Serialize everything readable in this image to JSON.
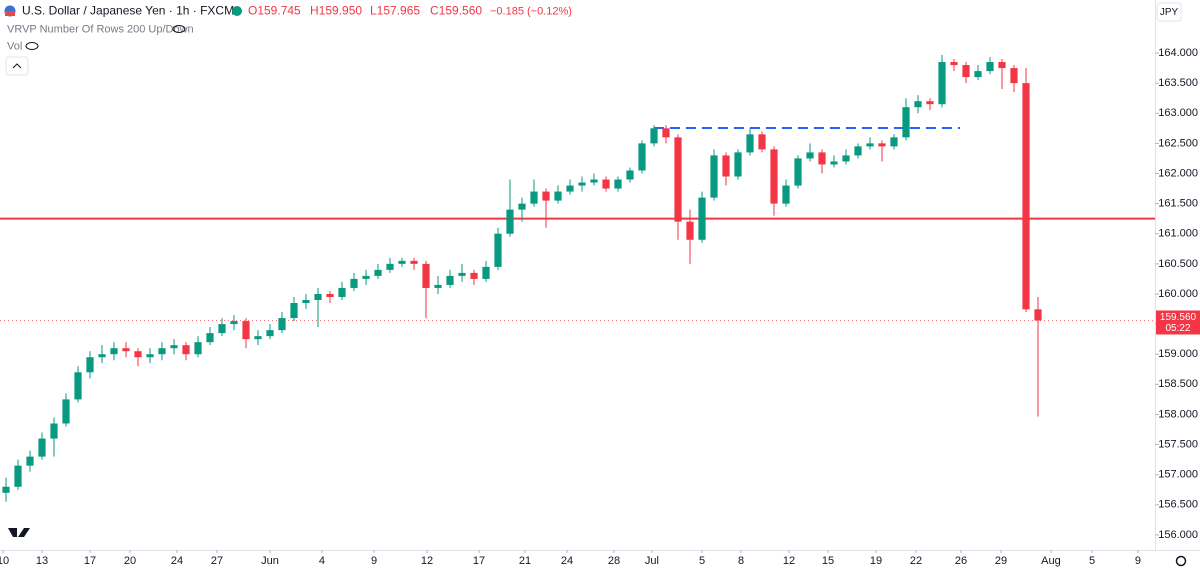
{
  "header": {
    "symbol": "U.S. Dollar / Japanese Yen · 1h · FXCM",
    "open": "O159.745",
    "high": "H159.950",
    "low": "L157.965",
    "close": "C159.560",
    "change": "−0.185 (−0.12%)",
    "indicator": "VRVP Number Of Rows 200 Up/Down",
    "volume": "Vol",
    "currency": "JPY"
  },
  "price_tag": {
    "price": "159.560",
    "countdown": "05:22"
  },
  "chart_data": {
    "type": "candlestick",
    "up_color": "#089981",
    "down_color": "#f23645",
    "candles": [
      [
        156.7,
        156.95,
        156.55,
        156.8
      ],
      [
        156.8,
        157.25,
        156.75,
        157.15
      ],
      [
        157.15,
        157.4,
        157.05,
        157.3
      ],
      [
        157.3,
        157.7,
        157.25,
        157.6
      ],
      [
        157.6,
        157.95,
        157.3,
        157.85
      ],
      [
        157.85,
        158.35,
        157.8,
        158.25
      ],
      [
        158.25,
        158.8,
        158.2,
        158.7
      ],
      [
        158.7,
        159.05,
        158.6,
        158.95
      ],
      [
        158.95,
        159.15,
        158.85,
        159.0
      ],
      [
        159.0,
        159.2,
        158.9,
        159.1
      ],
      [
        159.1,
        159.2,
        158.95,
        159.05
      ],
      [
        159.05,
        159.1,
        158.8,
        158.95
      ],
      [
        158.95,
        159.1,
        158.85,
        159.0
      ],
      [
        159.0,
        159.2,
        158.9,
        159.1
      ],
      [
        159.1,
        159.25,
        159.0,
        159.15
      ],
      [
        159.15,
        159.2,
        158.9,
        159.0
      ],
      [
        159.0,
        159.3,
        158.95,
        159.2
      ],
      [
        159.2,
        159.45,
        159.15,
        159.35
      ],
      [
        159.35,
        159.6,
        159.3,
        159.5
      ],
      [
        159.5,
        159.65,
        159.4,
        159.55
      ],
      [
        159.55,
        159.6,
        159.1,
        159.25
      ],
      [
        159.25,
        159.4,
        159.15,
        159.3
      ],
      [
        159.3,
        159.5,
        159.25,
        159.4
      ],
      [
        159.4,
        159.7,
        159.35,
        159.6
      ],
      [
        159.6,
        159.95,
        159.55,
        159.85
      ],
      [
        159.85,
        160.0,
        159.75,
        159.9
      ],
      [
        159.9,
        160.1,
        159.45,
        160.0
      ],
      [
        160.0,
        160.05,
        159.85,
        159.95
      ],
      [
        159.95,
        160.2,
        159.9,
        160.1
      ],
      [
        160.1,
        160.35,
        160.05,
        160.25
      ],
      [
        160.25,
        160.4,
        160.15,
        160.3
      ],
      [
        160.3,
        160.5,
        160.25,
        160.4
      ],
      [
        160.4,
        160.6,
        160.35,
        160.5
      ],
      [
        160.5,
        160.6,
        160.45,
        160.55
      ],
      [
        160.55,
        160.6,
        160.4,
        160.5
      ],
      [
        160.5,
        160.55,
        159.6,
        160.1
      ],
      [
        160.1,
        160.3,
        160.0,
        160.15
      ],
      [
        160.15,
        160.4,
        160.1,
        160.3
      ],
      [
        160.3,
        160.5,
        160.2,
        160.35
      ],
      [
        160.35,
        160.4,
        160.15,
        160.25
      ],
      [
        160.25,
        160.55,
        160.2,
        160.45
      ],
      [
        160.45,
        161.1,
        160.4,
        161.0
      ],
      [
        161.0,
        161.9,
        160.95,
        161.4
      ],
      [
        161.4,
        161.6,
        161.2,
        161.5
      ],
      [
        161.5,
        161.9,
        161.45,
        161.7
      ],
      [
        161.7,
        161.75,
        161.1,
        161.55
      ],
      [
        161.55,
        161.8,
        161.5,
        161.7
      ],
      [
        161.7,
        161.9,
        161.65,
        161.8
      ],
      [
        161.8,
        161.95,
        161.7,
        161.85
      ],
      [
        161.85,
        162.0,
        161.8,
        161.9
      ],
      [
        161.9,
        161.95,
        161.7,
        161.75
      ],
      [
        161.75,
        161.95,
        161.7,
        161.9
      ],
      [
        161.9,
        162.1,
        161.85,
        162.05
      ],
      [
        162.05,
        162.55,
        162.0,
        162.5
      ],
      [
        162.5,
        162.8,
        162.45,
        162.75
      ],
      [
        162.75,
        162.8,
        162.5,
        162.6
      ],
      [
        162.6,
        162.65,
        160.9,
        161.2
      ],
      [
        161.2,
        161.4,
        160.5,
        160.9
      ],
      [
        160.9,
        161.7,
        160.85,
        161.6
      ],
      [
        161.6,
        162.4,
        161.55,
        162.3
      ],
      [
        162.3,
        162.35,
        161.8,
        161.95
      ],
      [
        161.95,
        162.4,
        161.9,
        162.35
      ],
      [
        162.35,
        162.75,
        162.3,
        162.65
      ],
      [
        162.65,
        162.7,
        162.35,
        162.4
      ],
      [
        162.4,
        162.45,
        161.3,
        161.5
      ],
      [
        161.5,
        161.9,
        161.45,
        161.8
      ],
      [
        161.8,
        162.3,
        161.75,
        162.25
      ],
      [
        162.25,
        162.5,
        162.2,
        162.35
      ],
      [
        162.35,
        162.4,
        162.0,
        162.15
      ],
      [
        162.15,
        162.3,
        162.1,
        162.2
      ],
      [
        162.2,
        162.4,
        162.15,
        162.3
      ],
      [
        162.3,
        162.5,
        162.25,
        162.45
      ],
      [
        162.45,
        162.6,
        162.4,
        162.5
      ],
      [
        162.5,
        162.55,
        162.2,
        162.45
      ],
      [
        162.45,
        162.65,
        162.4,
        162.6
      ],
      [
        162.6,
        163.25,
        162.55,
        163.1
      ],
      [
        163.1,
        163.3,
        163.0,
        163.2
      ],
      [
        163.2,
        163.25,
        163.05,
        163.15
      ],
      [
        163.15,
        163.97,
        163.1,
        163.85
      ],
      [
        163.85,
        163.9,
        163.7,
        163.8
      ],
      [
        163.8,
        163.85,
        163.5,
        163.6
      ],
      [
        163.6,
        163.8,
        163.55,
        163.7
      ],
      [
        163.7,
        163.93,
        163.65,
        163.85
      ],
      [
        163.85,
        163.9,
        163.4,
        163.75
      ],
      [
        163.75,
        163.8,
        163.35,
        163.5
      ],
      [
        163.5,
        163.75,
        159.7,
        159.745
      ],
      [
        159.745,
        159.95,
        157.965,
        159.56
      ]
    ],
    "xlim": [
      -0.5,
      95.75
    ],
    "xticks": [
      {
        "value": -0.25,
        "label": "10"
      },
      {
        "value": 3.0,
        "label": "13"
      },
      {
        "value": 7.0,
        "label": "17"
      },
      {
        "value": 10.33,
        "label": "20"
      },
      {
        "value": 14.25,
        "label": "24"
      },
      {
        "value": 17.58,
        "label": "27"
      },
      {
        "value": 22.0,
        "label": "Jun"
      },
      {
        "value": 26.33,
        "label": "4"
      },
      {
        "value": 30.67,
        "label": "9"
      },
      {
        "value": 35.08,
        "label": "12"
      },
      {
        "value": 39.42,
        "label": "17"
      },
      {
        "value": 43.25,
        "label": "21"
      },
      {
        "value": 46.75,
        "label": "24"
      },
      {
        "value": 50.67,
        "label": "28"
      },
      {
        "value": 53.83,
        "label": "Jul"
      },
      {
        "value": 58.0,
        "label": "5"
      },
      {
        "value": 61.25,
        "label": "8"
      },
      {
        "value": 65.25,
        "label": "12"
      },
      {
        "value": 68.5,
        "label": "15"
      },
      {
        "value": 72.5,
        "label": "19"
      },
      {
        "value": 75.83,
        "label": "22"
      },
      {
        "value": 79.58,
        "label": "26"
      },
      {
        "value": 82.92,
        "label": "29"
      },
      {
        "value": 87.08,
        "label": "Aug"
      },
      {
        "value": 90.5,
        "label": "5"
      },
      {
        "value": 94.33,
        "label": "9"
      }
    ],
    "ylim": [
      155.75,
      164.88
    ],
    "yticks": [
      {
        "value": 156,
        "label": "156.000"
      },
      {
        "value": 156.5,
        "label": "156.500"
      },
      {
        "value": 157,
        "label": "157.000"
      },
      {
        "value": 157.5,
        "label": "157.500"
      },
      {
        "value": 158,
        "label": "158.000"
      },
      {
        "value": 158.5,
        "label": "158.500"
      },
      {
        "value": 159,
        "label": "159.000"
      },
      {
        "value": 159.5,
        "label": "159.500"
      },
      {
        "value": 160,
        "label": "160.000"
      },
      {
        "value": 160.5,
        "label": "160.500"
      },
      {
        "value": 161,
        "label": "161.000"
      },
      {
        "value": 161.5,
        "label": "161.500"
      },
      {
        "value": 162,
        "label": "162.000"
      },
      {
        "value": 162.5,
        "label": "162.500"
      },
      {
        "value": 163,
        "label": "163.000"
      },
      {
        "value": 163.5,
        "label": "163.500"
      },
      {
        "value": 164,
        "label": "164.000"
      }
    ],
    "lines": [
      {
        "value": 161.25,
        "color": "#f23645"
      },
      {
        "value": 162.755,
        "from": 54,
        "to": 79.5,
        "color": "#2962ff",
        "dashed": true
      }
    ],
    "current_price": 159.56,
    "current_color": "#f23645"
  }
}
